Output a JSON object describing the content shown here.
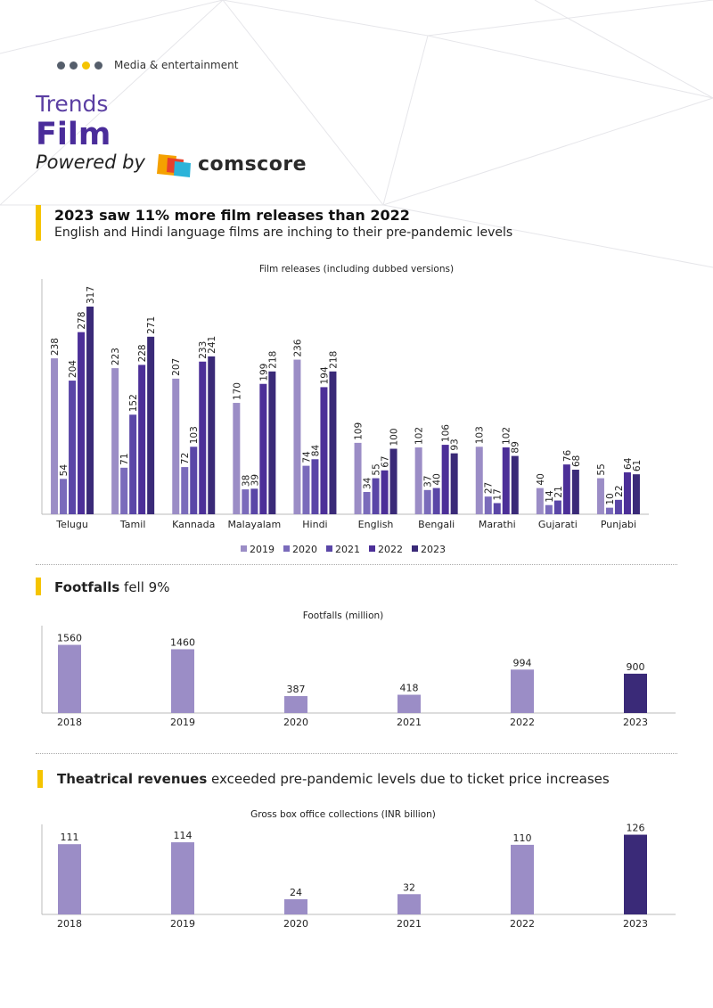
{
  "header": {
    "category": "Media & entertainment",
    "trends": "Trends",
    "film": "Film",
    "powered_by": "Powered by",
    "logo_text": "comscore"
  },
  "colors": {
    "accent_purple": "#4a2c9a",
    "yellow": "#f5c400",
    "dot_gray": "#555e6b",
    "series": [
      "#9b8dc6",
      "#7a6bbb",
      "#5a46a7",
      "#4c2f98",
      "#3a2a78"
    ]
  },
  "section1": {
    "title": "2023 saw 11% more film releases than 2022",
    "subtitle": "English and Hindi language films are inching to their pre-pandemic levels"
  },
  "section2": {
    "bold": "Footfalls",
    "rest": " fell 9%"
  },
  "section3": {
    "bold": "Theatrical revenues",
    "rest": " exceeded pre-pandemic levels due to ticket price increases"
  },
  "chart_data": [
    {
      "type": "bar",
      "title": "Film releases (including dubbed versions)",
      "categories": [
        "Telugu",
        "Tamil",
        "Kannada",
        "Malayalam",
        "Hindi",
        "English",
        "Bengali",
        "Marathi",
        "Gujarati",
        "Punjabi"
      ],
      "series": [
        {
          "name": "2019",
          "values": [
            238,
            223,
            207,
            170,
            236,
            109,
            102,
            103,
            40,
            55
          ]
        },
        {
          "name": "2020",
          "values": [
            54,
            71,
            72,
            38,
            74,
            34,
            37,
            27,
            14,
            10
          ]
        },
        {
          "name": "2021",
          "values": [
            204,
            152,
            103,
            39,
            84,
            55,
            40,
            17,
            21,
            22
          ]
        },
        {
          "name": "2022",
          "values": [
            278,
            228,
            233,
            199,
            194,
            67,
            106,
            102,
            76,
            64
          ]
        },
        {
          "name": "2023",
          "values": [
            317,
            271,
            241,
            218,
            218,
            100,
            93,
            89,
            68,
            61
          ]
        }
      ],
      "legend": "bottom"
    },
    {
      "type": "bar",
      "title": "Footfalls (million)",
      "categories": [
        "2018",
        "2019",
        "2020",
        "2021",
        "2022",
        "2023"
      ],
      "values": [
        1560,
        1460,
        387,
        418,
        994,
        900
      ]
    },
    {
      "type": "bar",
      "title": "Gross box office collections (INR billion)",
      "categories": [
        "2018",
        "2019",
        "2020",
        "2021",
        "2022",
        "2023"
      ],
      "values": [
        111,
        114,
        24,
        32,
        110,
        126
      ]
    }
  ]
}
